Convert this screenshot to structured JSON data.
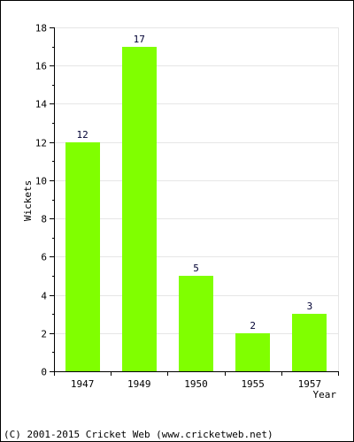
{
  "chart_data": {
    "type": "bar",
    "categories": [
      "1947",
      "1949",
      "1950",
      "1955",
      "1957"
    ],
    "values": [
      12,
      17,
      5,
      2,
      3
    ],
    "title": "",
    "xlabel": "Year",
    "ylabel": "Wickets",
    "ylim": [
      0,
      18
    ],
    "yticks": [
      0,
      2,
      4,
      6,
      8,
      10,
      12,
      14,
      16,
      18
    ],
    "grid": true,
    "data_labels": true,
    "bar_color": "#80ff00",
    "label_color": "#000033"
  },
  "footer": {
    "copyright": "(C) 2001-2015 Cricket Web (www.cricketweb.net)"
  }
}
